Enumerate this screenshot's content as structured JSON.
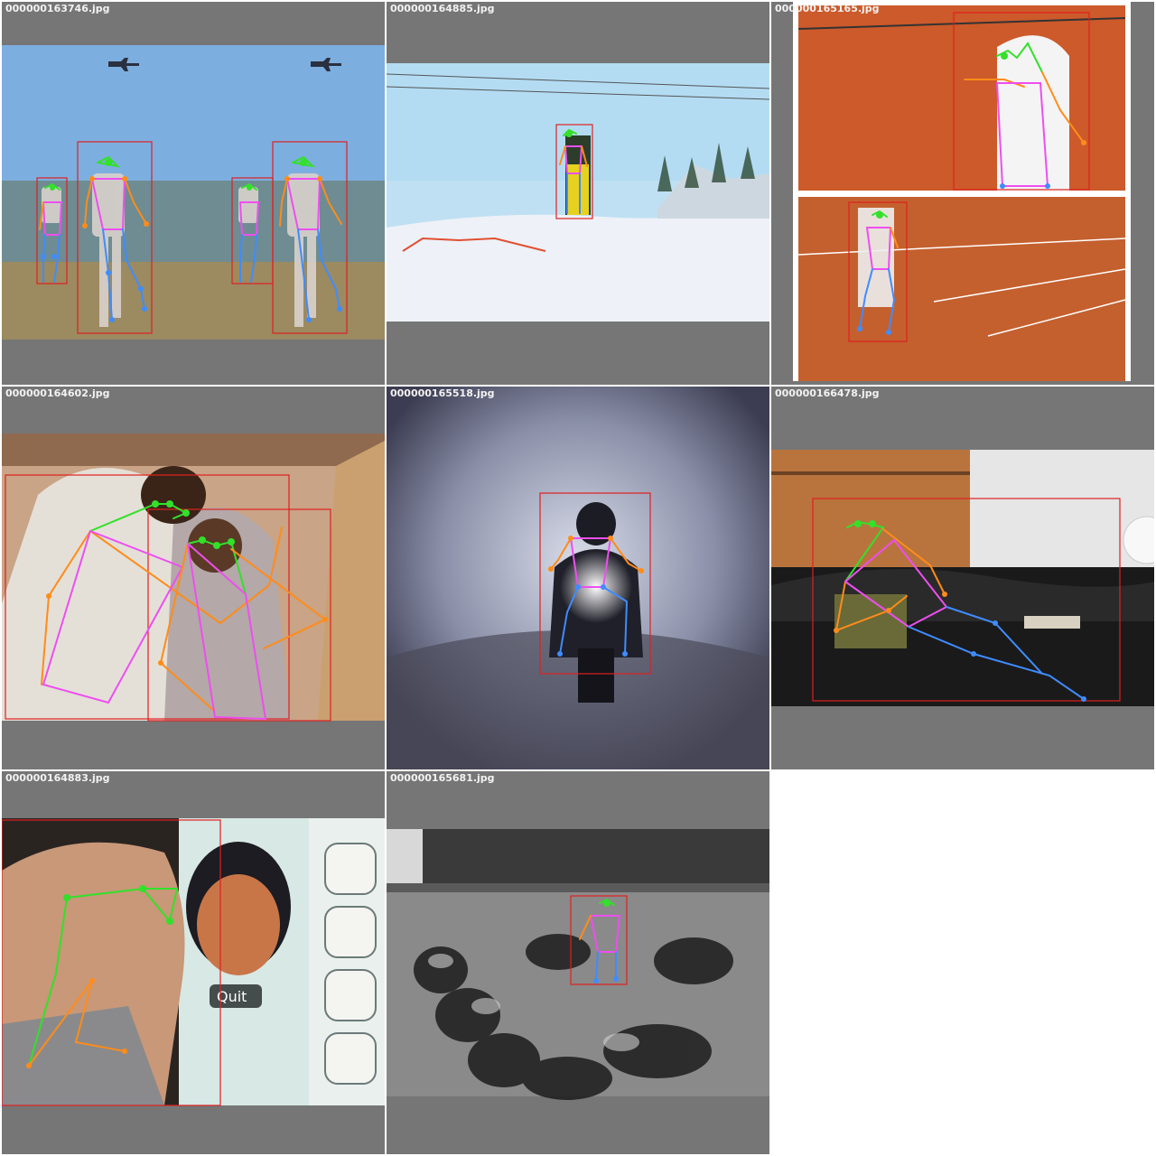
{
  "tiles": [
    {
      "file": "000000163746.jpg"
    },
    {
      "file": "000000164885.jpg"
    },
    {
      "file": "000000165165.jpg"
    },
    {
      "file": "000000164602.jpg"
    },
    {
      "file": "000000165518.jpg"
    },
    {
      "file": "000000166478.jpg"
    },
    {
      "file": "000000164883.jpg"
    },
    {
      "file": "000000165681.jpg"
    }
  ],
  "screen_text": {
    "quit": "Quit"
  },
  "colors": {
    "background": "#767676",
    "bbox": "#e02020",
    "skeleton_face": "#33e02a",
    "skeleton_arms": "#ff8c1a",
    "skeleton_legs": "#3f8cff",
    "skeleton_torso": "#ee4ef0"
  }
}
